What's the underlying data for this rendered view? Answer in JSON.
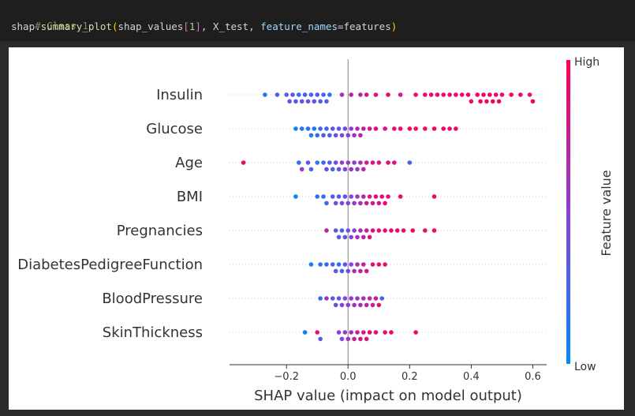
{
  "code_cell": {
    "comment": "# Class 1",
    "code_tokens": [
      {
        "text": "shap",
        "cls": "tok-plain"
      },
      {
        "text": ".",
        "cls": "tok-plain"
      },
      {
        "text": "summary_plot",
        "cls": "tok-fn"
      },
      {
        "text": "(",
        "cls": "tok-paren"
      },
      {
        "text": "shap_values",
        "cls": "tok-plain"
      },
      {
        "text": "[",
        "cls": "tok-bracket"
      },
      {
        "text": "1",
        "cls": "tok-num"
      },
      {
        "text": "]",
        "cls": "tok-bracket"
      },
      {
        "text": ", X_test, ",
        "cls": "tok-plain"
      },
      {
        "text": "feature_names",
        "cls": "tok-param"
      },
      {
        "text": "=features",
        "cls": "tok-plain"
      },
      {
        "text": ")",
        "cls": "tok-paren"
      }
    ]
  },
  "chart_data": {
    "type": "scatter",
    "title": "",
    "xlabel": "SHAP value (impact on model output)",
    "ylabel": "",
    "xlim": [
      -0.385,
      0.645
    ],
    "x_ticks": [
      -0.2,
      0.0,
      0.2,
      0.4,
      0.6
    ],
    "x_tick_labels": [
      "−0.2",
      "0.0",
      "0.2",
      "0.4",
      "0.6"
    ],
    "grid": false,
    "colorbar": {
      "label": "Feature value",
      "high_label": "High",
      "low_label": "Low",
      "low_color": "#008bfb",
      "high_color": "#ff0052"
    },
    "features": [
      {
        "name": "Insulin",
        "points": [
          [
            -0.27,
            0.12
          ],
          [
            -0.23,
            0.3
          ],
          [
            -0.2,
            0.25
          ],
          [
            -0.19,
            0.4
          ],
          [
            -0.18,
            0.35
          ],
          [
            -0.17,
            0.3
          ],
          [
            -0.16,
            0.2
          ],
          [
            -0.15,
            0.35
          ],
          [
            -0.14,
            0.3
          ],
          [
            -0.13,
            0.4
          ],
          [
            -0.12,
            0.25
          ],
          [
            -0.11,
            0.3
          ],
          [
            -0.1,
            0.35
          ],
          [
            -0.09,
            0.3
          ],
          [
            -0.08,
            0.25
          ],
          [
            -0.07,
            0.3
          ],
          [
            -0.06,
            0.2
          ],
          [
            -0.02,
            0.6
          ],
          [
            0.01,
            0.7
          ],
          [
            0.04,
            0.7
          ],
          [
            0.06,
            0.8
          ],
          [
            0.09,
            0.85
          ],
          [
            0.13,
            0.9
          ],
          [
            0.17,
            0.8
          ],
          [
            0.22,
            0.9
          ],
          [
            0.25,
            0.85
          ],
          [
            0.27,
            0.95
          ],
          [
            0.29,
            0.9
          ],
          [
            0.31,
            0.95
          ],
          [
            0.33,
            0.9
          ],
          [
            0.35,
            0.95
          ],
          [
            0.37,
            0.9
          ],
          [
            0.39,
            0.95
          ],
          [
            0.4,
            0.9
          ],
          [
            0.42,
            0.95
          ],
          [
            0.43,
            0.95
          ],
          [
            0.44,
            0.95
          ],
          [
            0.45,
            0.9
          ],
          [
            0.46,
            0.95
          ],
          [
            0.47,
            0.95
          ],
          [
            0.48,
            0.9
          ],
          [
            0.49,
            0.95
          ],
          [
            0.5,
            0.9
          ],
          [
            0.53,
            0.95
          ],
          [
            0.56,
            0.9
          ],
          [
            0.59,
            0.85
          ],
          [
            0.6,
            0.95
          ]
        ]
      },
      {
        "name": "Glucose",
        "points": [
          [
            -0.17,
            0.1
          ],
          [
            -0.15,
            0.15
          ],
          [
            -0.13,
            0.2
          ],
          [
            -0.12,
            0.15
          ],
          [
            -0.11,
            0.1
          ],
          [
            -0.1,
            0.2
          ],
          [
            -0.09,
            0.25
          ],
          [
            -0.08,
            0.3
          ],
          [
            -0.07,
            0.2
          ],
          [
            -0.06,
            0.3
          ],
          [
            -0.05,
            0.35
          ],
          [
            -0.04,
            0.4
          ],
          [
            -0.03,
            0.35
          ],
          [
            -0.02,
            0.45
          ],
          [
            -0.01,
            0.4
          ],
          [
            0.0,
            0.5
          ],
          [
            0.01,
            0.55
          ],
          [
            0.02,
            0.6
          ],
          [
            0.03,
            0.65
          ],
          [
            0.04,
            0.7
          ],
          [
            0.05,
            0.75
          ],
          [
            0.07,
            0.8
          ],
          [
            0.09,
            0.85
          ],
          [
            0.12,
            0.85
          ],
          [
            0.15,
            0.9
          ],
          [
            0.17,
            0.9
          ],
          [
            0.2,
            0.95
          ],
          [
            0.22,
            0.9
          ],
          [
            0.25,
            0.95
          ],
          [
            0.28,
            0.95
          ],
          [
            0.31,
            0.95
          ],
          [
            0.33,
            0.9
          ],
          [
            0.35,
            0.95
          ]
        ]
      },
      {
        "name": "Age",
        "points": [
          [
            -0.34,
            0.95
          ],
          [
            -0.16,
            0.2
          ],
          [
            -0.15,
            0.55
          ],
          [
            -0.13,
            0.35
          ],
          [
            -0.12,
            0.25
          ],
          [
            -0.1,
            0.15
          ],
          [
            -0.08,
            0.2
          ],
          [
            -0.07,
            0.35
          ],
          [
            -0.06,
            0.3
          ],
          [
            -0.05,
            0.25
          ],
          [
            -0.04,
            0.45
          ],
          [
            -0.03,
            0.4
          ],
          [
            -0.02,
            0.5
          ],
          [
            -0.01,
            0.45
          ],
          [
            0.0,
            0.55
          ],
          [
            0.01,
            0.6
          ],
          [
            0.02,
            0.5
          ],
          [
            0.03,
            0.55
          ],
          [
            0.04,
            0.65
          ],
          [
            0.05,
            0.7
          ],
          [
            0.06,
            0.75
          ],
          [
            0.08,
            0.8
          ],
          [
            0.1,
            0.85
          ],
          [
            0.13,
            0.9
          ],
          [
            0.15,
            0.85
          ],
          [
            0.2,
            0.3
          ]
        ]
      },
      {
        "name": "BMI",
        "points": [
          [
            -0.17,
            0.05
          ],
          [
            -0.1,
            0.15
          ],
          [
            -0.08,
            0.2
          ],
          [
            -0.07,
            0.25
          ],
          [
            -0.05,
            0.3
          ],
          [
            -0.04,
            0.35
          ],
          [
            -0.03,
            0.3
          ],
          [
            -0.02,
            0.4
          ],
          [
            -0.01,
            0.35
          ],
          [
            0.0,
            0.45
          ],
          [
            0.01,
            0.5
          ],
          [
            0.02,
            0.55
          ],
          [
            0.03,
            0.6
          ],
          [
            0.04,
            0.65
          ],
          [
            0.05,
            0.7
          ],
          [
            0.06,
            0.75
          ],
          [
            0.07,
            0.8
          ],
          [
            0.08,
            0.75
          ],
          [
            0.09,
            0.85
          ],
          [
            0.1,
            0.8
          ],
          [
            0.11,
            0.85
          ],
          [
            0.12,
            0.9
          ],
          [
            0.13,
            0.85
          ],
          [
            0.17,
            0.9
          ],
          [
            0.28,
            0.95
          ]
        ]
      },
      {
        "name": "Pregnancies",
        "points": [
          [
            -0.07,
            0.7
          ],
          [
            -0.04,
            0.35
          ],
          [
            -0.03,
            0.3
          ],
          [
            -0.02,
            0.25
          ],
          [
            -0.01,
            0.35
          ],
          [
            0.0,
            0.4
          ],
          [
            0.01,
            0.45
          ],
          [
            0.02,
            0.5
          ],
          [
            0.03,
            0.6
          ],
          [
            0.04,
            0.65
          ],
          [
            0.05,
            0.7
          ],
          [
            0.06,
            0.75
          ],
          [
            0.07,
            0.8
          ],
          [
            0.08,
            0.85
          ],
          [
            0.1,
            0.9
          ],
          [
            0.12,
            0.85
          ],
          [
            0.14,
            0.9
          ],
          [
            0.16,
            0.95
          ],
          [
            0.18,
            0.9
          ],
          [
            0.21,
            0.95
          ],
          [
            0.25,
            0.9
          ],
          [
            0.28,
            0.95
          ]
        ]
      },
      {
        "name": "DiabetesPedigreeFunction",
        "points": [
          [
            -0.12,
            0.1
          ],
          [
            -0.09,
            0.15
          ],
          [
            -0.07,
            0.2
          ],
          [
            -0.05,
            0.25
          ],
          [
            -0.04,
            0.3
          ],
          [
            -0.03,
            0.2
          ],
          [
            -0.02,
            0.3
          ],
          [
            -0.01,
            0.35
          ],
          [
            0.0,
            0.4
          ],
          [
            0.01,
            0.5
          ],
          [
            0.02,
            0.6
          ],
          [
            0.03,
            0.65
          ],
          [
            0.04,
            0.7
          ],
          [
            0.05,
            0.75
          ],
          [
            0.06,
            0.8
          ],
          [
            0.08,
            0.85
          ],
          [
            0.1,
            0.9
          ],
          [
            0.12,
            0.9
          ]
        ]
      },
      {
        "name": "BloodPressure",
        "points": [
          [
            -0.09,
            0.2
          ],
          [
            -0.07,
            0.6
          ],
          [
            -0.05,
            0.3
          ],
          [
            -0.04,
            0.4
          ],
          [
            -0.03,
            0.35
          ],
          [
            -0.02,
            0.45
          ],
          [
            -0.01,
            0.4
          ],
          [
            0.0,
            0.5
          ],
          [
            0.01,
            0.55
          ],
          [
            0.02,
            0.6
          ],
          [
            0.03,
            0.55
          ],
          [
            0.04,
            0.6
          ],
          [
            0.05,
            0.65
          ],
          [
            0.06,
            0.7
          ],
          [
            0.07,
            0.65
          ],
          [
            0.08,
            0.75
          ],
          [
            0.09,
            0.8
          ],
          [
            0.1,
            0.85
          ],
          [
            0.11,
            0.25
          ]
        ]
      },
      {
        "name": "SkinThickness",
        "points": [
          [
            -0.14,
            0.1
          ],
          [
            -0.1,
            0.85
          ],
          [
            -0.09,
            0.3
          ],
          [
            -0.03,
            0.5
          ],
          [
            -0.02,
            0.45
          ],
          [
            -0.01,
            0.55
          ],
          [
            0.0,
            0.6
          ],
          [
            0.01,
            0.65
          ],
          [
            0.02,
            0.7
          ],
          [
            0.03,
            0.75
          ],
          [
            0.04,
            0.8
          ],
          [
            0.05,
            0.85
          ],
          [
            0.06,
            0.8
          ],
          [
            0.07,
            0.9
          ],
          [
            0.09,
            0.85
          ],
          [
            0.12,
            0.9
          ],
          [
            0.14,
            0.9
          ],
          [
            0.22,
            0.95
          ]
        ]
      }
    ]
  }
}
